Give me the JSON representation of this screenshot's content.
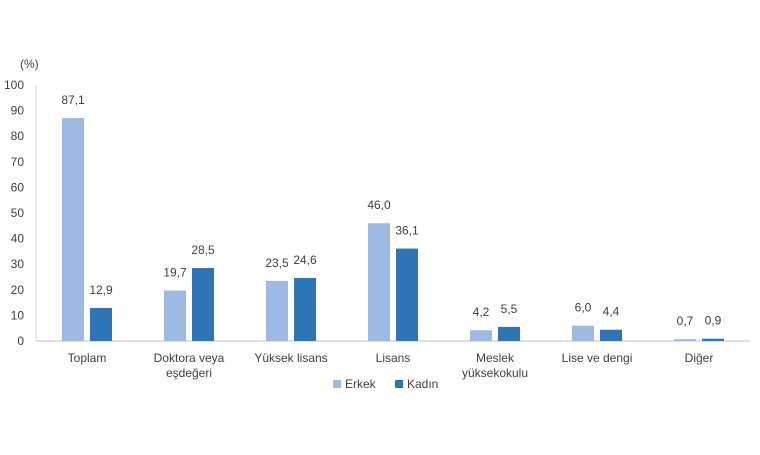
{
  "chart_data": {
    "type": "bar",
    "ylabel": "(%)",
    "ylim": [
      0,
      100
    ],
    "yticks": [
      "0",
      "10",
      "20",
      "30",
      "40",
      "50",
      "60",
      "70",
      "80",
      "90",
      "100"
    ],
    "categories": [
      [
        "Toplam"
      ],
      [
        "Doktora veya",
        "eşdeğeri"
      ],
      [
        "Yüksek lisans"
      ],
      [
        "Lisans"
      ],
      [
        "Meslek",
        "yüksekokulu"
      ],
      [
        "Lise ve dengi"
      ],
      [
        "Diğer"
      ]
    ],
    "series": [
      {
        "name": "Erkek",
        "color": "#9DBAE3",
        "values": [
          87.1,
          19.7,
          23.5,
          46.0,
          4.2,
          6.0,
          0.7
        ],
        "labels": [
          "87,1",
          "19,7",
          "23,5",
          "46,0",
          "4,2",
          "6,0",
          "0,7"
        ]
      },
      {
        "name": "Kadın",
        "color": "#2E75B6",
        "values": [
          12.9,
          28.5,
          24.6,
          36.1,
          5.5,
          4.4,
          0.9
        ],
        "labels": [
          "12,9",
          "28,5",
          "24,6",
          "36,1",
          "5,5",
          "4,4",
          "0,9"
        ]
      }
    ],
    "grid": false,
    "legend": "bottom-center"
  }
}
